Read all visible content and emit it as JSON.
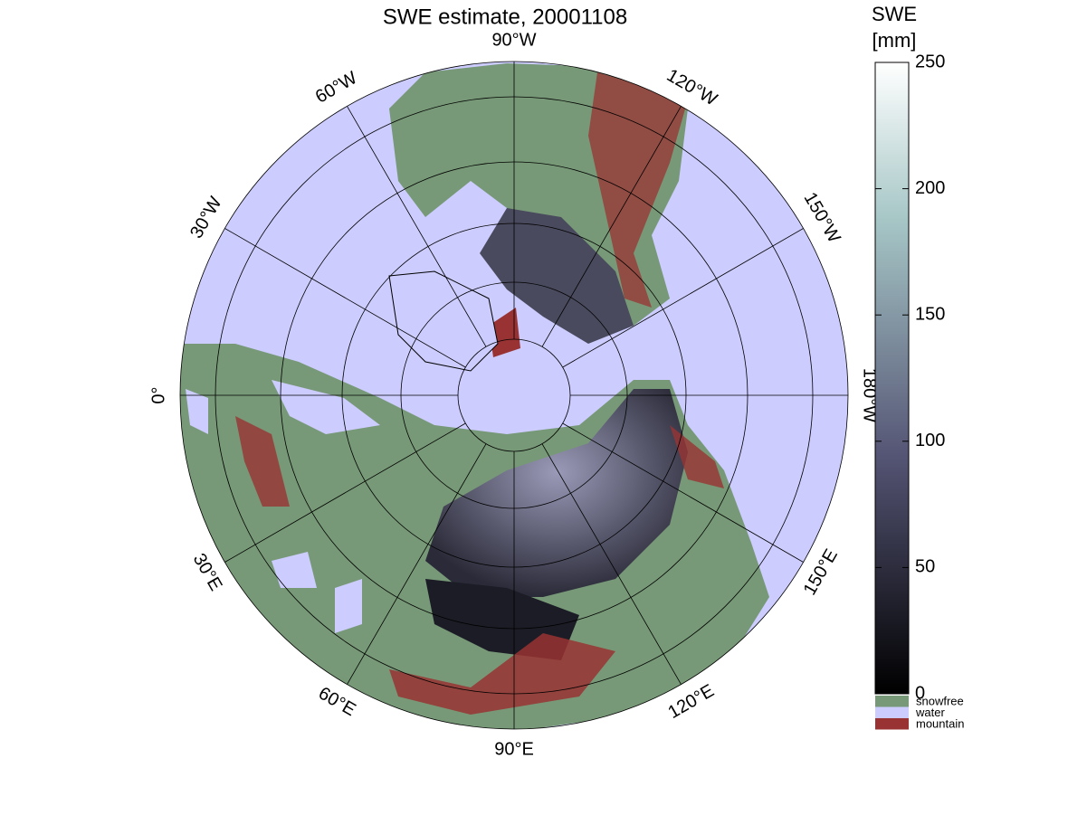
{
  "map": {
    "title": "SWE estimate, 20001108",
    "meridians": [
      {
        "value": -90,
        "label": "90°W"
      },
      {
        "value": -120,
        "label": "120°W"
      },
      {
        "value": -150,
        "label": "150°W"
      },
      {
        "value": -180,
        "label": "180°W"
      },
      {
        "value": 150,
        "label": "150°E"
      },
      {
        "value": 120,
        "label": "120°E"
      },
      {
        "value": 90,
        "label": "90°E"
      },
      {
        "value": 60,
        "label": "60°E"
      },
      {
        "value": 30,
        "label": "30°E"
      },
      {
        "value": 0,
        "label": "0°"
      },
      {
        "value": -30,
        "label": "30°W"
      },
      {
        "value": -60,
        "label": "60°W"
      }
    ],
    "colorbar": {
      "title": [
        "SWE",
        "[mm]"
      ],
      "ylim": [
        0,
        250
      ],
      "ticks": [
        0,
        50,
        100,
        150,
        200,
        250
      ],
      "categories": [
        {
          "name": "snowfree",
          "color": "#779977"
        },
        {
          "name": "water",
          "color": "#ccccff"
        },
        {
          "name": "mountain",
          "color": "#993333"
        }
      ]
    }
  }
}
